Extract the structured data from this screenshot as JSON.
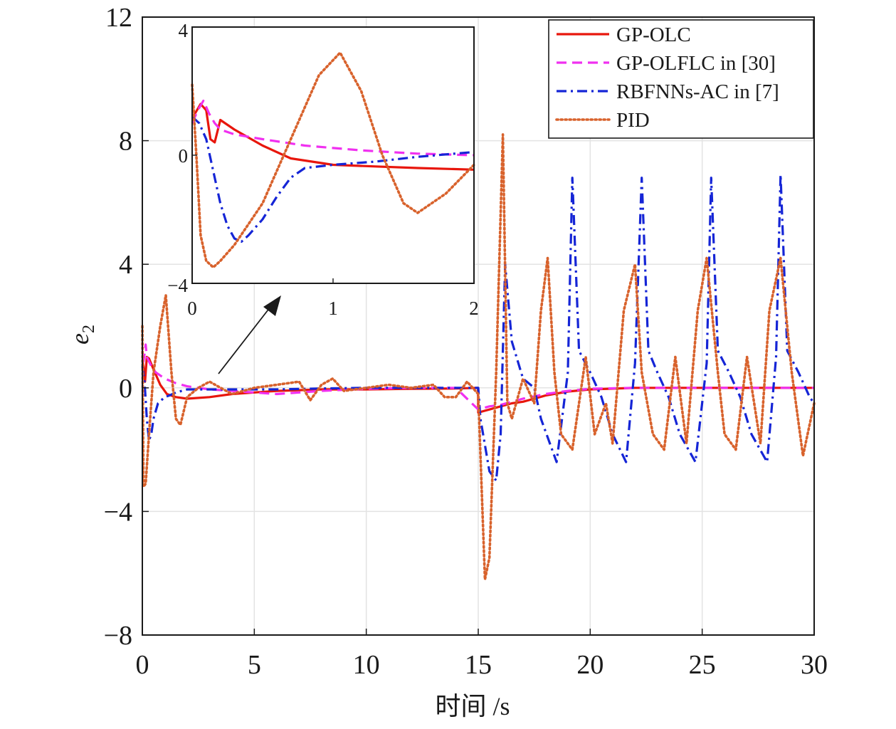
{
  "chart_data": {
    "type": "line",
    "xlabel": "时间 /s",
    "ylabel": "e",
    "ylabel_sub": "2",
    "xlim": [
      0,
      30
    ],
    "ylim": [
      -8,
      12
    ],
    "xticks": [
      0,
      5,
      10,
      15,
      20,
      25,
      30
    ],
    "yticks": [
      -8,
      -4,
      0,
      4,
      8,
      12
    ],
    "yticklabels": [
      "−8",
      "−4",
      "0",
      "4",
      "8",
      "12"
    ],
    "grid": true,
    "legend_position": "top-right",
    "colors": {
      "GP-OLC": "#e8160c",
      "GP-OLFLC in [30]": "#f030f0",
      "RBFNNs-AC in [7]": "#1525d6",
      "PID": "#d8622c"
    },
    "series": [
      {
        "name": "GP-OLC",
        "line_style": "solid",
        "x": [
          0,
          0.05,
          0.12,
          0.2,
          0.3,
          0.5,
          0.8,
          1.1,
          1.5,
          2.0,
          3.0,
          4.0,
          6.0,
          8.0,
          10.0,
          12.0,
          14.0,
          14.99,
          15.0,
          15.5,
          16.0,
          16.5,
          17.0,
          17.5,
          18.0,
          19.0,
          20.0,
          22.0,
          25.0,
          28.0,
          30.0
        ],
        "y": [
          0.9,
          0.7,
          0.2,
          1.0,
          0.95,
          0.6,
          0.1,
          -0.2,
          -0.3,
          -0.35,
          -0.3,
          -0.2,
          -0.1,
          -0.05,
          -0.05,
          -0.03,
          -0.02,
          0.0,
          -0.8,
          -0.7,
          -0.6,
          -0.5,
          -0.45,
          -0.35,
          -0.25,
          -0.12,
          -0.05,
          0.0,
          0.0,
          0.0,
          0.0
        ]
      },
      {
        "name": "GP-OLFLC in [30]",
        "line_style": "dashed",
        "x": [
          0,
          0.05,
          0.1,
          0.15,
          0.2,
          0.4,
          0.6,
          1.0,
          1.5,
          2.0,
          3.0,
          4.0,
          5.0,
          6.0,
          8.0,
          10.0,
          12.0,
          14.0,
          15.0,
          15.5,
          16.0,
          16.5,
          17.0,
          18.0,
          19.0,
          20.0,
          22.0,
          25.0,
          30.0
        ],
        "y": [
          0.9,
          0.85,
          1.1,
          1.4,
          1.0,
          0.7,
          0.5,
          0.3,
          0.15,
          0.05,
          -0.05,
          -0.1,
          -0.15,
          -0.2,
          -0.1,
          -0.03,
          0.0,
          0.0,
          -0.7,
          -0.6,
          -0.55,
          -0.45,
          -0.35,
          -0.2,
          -0.1,
          -0.03,
          0.0,
          0.0,
          0.0
        ]
      },
      {
        "name": "RBFNNs-AC in [7]",
        "line_style": "dashdot",
        "x": [
          0,
          0.1,
          0.2,
          0.3,
          0.4,
          0.5,
          0.7,
          1.0,
          1.2,
          1.5,
          2.0,
          2.5,
          3.0,
          4.0,
          6.0,
          8.0,
          10.0,
          12.0,
          14.0,
          15.0,
          15.1,
          15.5,
          15.8,
          16.0,
          16.2,
          16.5,
          17.0,
          17.5,
          17.8,
          18.5,
          19.0,
          19.2,
          19.5,
          20.0,
          20.5,
          21.0,
          21.6,
          22.0,
          22.3,
          22.6,
          23.0,
          23.5,
          24.0,
          24.7,
          25.2,
          25.4,
          25.7,
          26.2,
          26.7,
          27.2,
          27.9,
          28.3,
          28.5,
          28.8,
          29.3,
          29.8,
          30.0
        ],
        "y": [
          0.7,
          0.2,
          -1.0,
          -1.7,
          -1.5,
          -1.0,
          -0.5,
          -0.3,
          -0.25,
          -0.15,
          -0.05,
          -0.05,
          -0.05,
          -0.05,
          -0.05,
          -0.02,
          0.0,
          0.0,
          0.0,
          0.0,
          -1.0,
          -2.7,
          -3.0,
          -1.5,
          4.0,
          1.5,
          0.3,
          0.0,
          -1.0,
          -2.4,
          0.5,
          6.8,
          1.2,
          0.5,
          -0.3,
          -1.5,
          -2.4,
          0.8,
          6.8,
          1.2,
          0.5,
          -0.3,
          -1.5,
          -2.4,
          0.8,
          6.8,
          1.2,
          0.5,
          -0.3,
          -1.5,
          -2.4,
          1.0,
          6.9,
          1.2,
          0.5,
          -0.3,
          -0.5
        ]
      },
      {
        "name": "PID",
        "line_style": "dotted",
        "x": [
          0,
          0.05,
          0.15,
          0.3,
          0.5,
          0.8,
          1.05,
          1.3,
          1.5,
          1.7,
          2.0,
          2.5,
          3.0,
          3.5,
          4.0,
          5.0,
          6.0,
          7.0,
          7.5,
          8.0,
          8.5,
          9.0,
          10.0,
          11.0,
          12.0,
          13.0,
          13.5,
          14.0,
          14.5,
          15.0,
          15.3,
          15.5,
          15.8,
          16.1,
          16.3,
          16.5,
          17.0,
          17.5,
          17.8,
          18.1,
          18.4,
          18.7,
          19.2,
          19.8,
          20.2,
          20.7,
          21.0,
          21.5,
          22.0,
          22.3,
          22.8,
          23.3,
          23.8,
          24.3,
          24.8,
          25.2,
          25.7,
          26.0,
          26.5,
          27.0,
          27.6,
          28.0,
          28.5,
          29.0,
          29.5,
          30.0
        ],
        "y": [
          2.0,
          -3.2,
          -3.1,
          -1.5,
          0.5,
          2.0,
          3.0,
          0.5,
          -1.0,
          -1.2,
          -0.3,
          0.0,
          0.2,
          0.0,
          -0.2,
          0.0,
          0.1,
          0.2,
          -0.4,
          0.1,
          0.3,
          -0.1,
          0.0,
          0.1,
          0.0,
          0.1,
          -0.3,
          -0.3,
          0.2,
          -0.2,
          -6.2,
          -5.5,
          0.5,
          8.2,
          -0.5,
          -1.0,
          0.3,
          -0.5,
          2.5,
          4.2,
          0.5,
          -1.5,
          -2.0,
          1.0,
          -1.5,
          -0.5,
          -1.8,
          2.5,
          4.0,
          0.5,
          -1.5,
          -2.0,
          1.0,
          -1.8,
          2.5,
          4.2,
          0.5,
          -1.5,
          -2.0,
          1.0,
          -1.8,
          2.5,
          4.2,
          0.5,
          -2.2,
          -0.5
        ]
      }
    ],
    "inset": {
      "xlim": [
        0,
        2
      ],
      "ylim": [
        -4,
        4
      ],
      "xticks": [
        0,
        1,
        2
      ],
      "yticks": [
        -4,
        0,
        4
      ],
      "yticklabels": [
        "−4",
        "0",
        "4"
      ],
      "grid": false,
      "series": [
        {
          "name": "GP-OLC",
          "x": [
            0,
            0.02,
            0.06,
            0.1,
            0.13,
            0.16,
            0.2,
            0.3,
            0.5,
            0.7,
            1.0,
            1.3,
            1.6,
            2.0
          ],
          "y": [
            1.2,
            1.3,
            1.6,
            1.4,
            0.5,
            0.4,
            1.1,
            0.8,
            0.3,
            -0.1,
            -0.3,
            -0.35,
            -0.4,
            -0.45
          ],
          "line_style": "solid"
        },
        {
          "name": "GP-OLFLC in [30]",
          "x": [
            0,
            0.04,
            0.08,
            0.12,
            0.16,
            0.2,
            0.3,
            0.5,
            0.8,
            1.2,
            1.6,
            2.0
          ],
          "y": [
            1.0,
            1.4,
            1.7,
            1.3,
            1.0,
            0.8,
            0.65,
            0.5,
            0.3,
            0.15,
            0.05,
            0.0
          ],
          "line_style": "dashed"
        },
        {
          "name": "RBFNNs-AC in [7]",
          "x": [
            0,
            0.05,
            0.1,
            0.15,
            0.2,
            0.25,
            0.3,
            0.35,
            0.4,
            0.5,
            0.6,
            0.7,
            0.8,
            1.0,
            1.3,
            1.6,
            2.0
          ],
          "y": [
            1.2,
            1.0,
            0.5,
            -0.5,
            -1.5,
            -2.2,
            -2.6,
            -2.7,
            -2.5,
            -2.0,
            -1.3,
            -0.7,
            -0.4,
            -0.3,
            -0.2,
            -0.05,
            0.1
          ],
          "line_style": "dashdot"
        },
        {
          "name": "PID",
          "x": [
            0,
            0.03,
            0.06,
            0.1,
            0.15,
            0.2,
            0.3,
            0.5,
            0.7,
            0.9,
            1.05,
            1.2,
            1.35,
            1.5,
            1.6,
            1.8,
            2.0
          ],
          "y": [
            2.2,
            0.0,
            -2.5,
            -3.3,
            -3.5,
            -3.3,
            -2.8,
            -1.5,
            0.5,
            2.5,
            3.2,
            2.0,
            0.0,
            -1.5,
            -1.8,
            -1.2,
            -0.3
          ],
          "line_style": "dotted"
        }
      ]
    }
  }
}
